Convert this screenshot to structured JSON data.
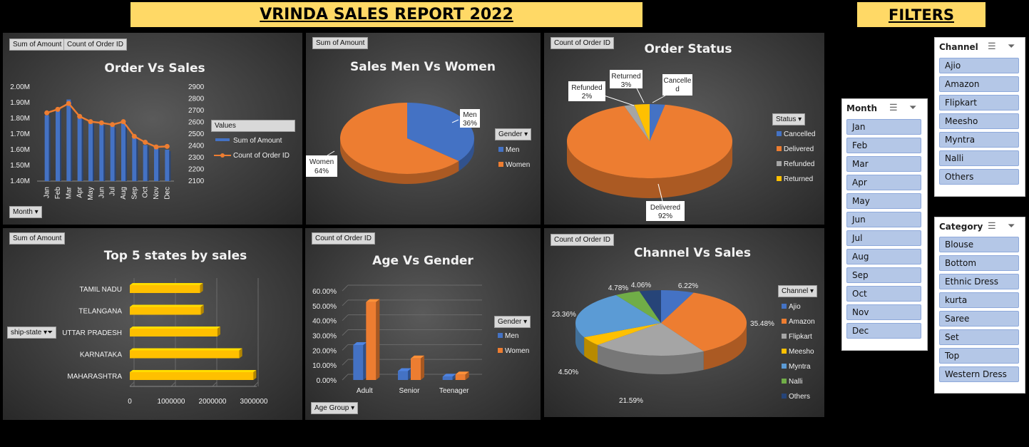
{
  "header": {
    "title": "VRINDA SALES REPORT 2022",
    "filters_title": "FILTERS"
  },
  "order_vs_sales": {
    "field_buttons": [
      "Sum of Amount",
      "Count of Order ID"
    ],
    "axis_button": "Month",
    "legend_header": "Values"
  },
  "sales_men_women": {
    "field_button": "Sum of Amount",
    "legend_header": "Gender"
  },
  "order_status": {
    "field_button": "Count of Order ID",
    "legend_header": "Status"
  },
  "top_states": {
    "field_button": "Sum of Amount",
    "axis_button": "ship-state"
  },
  "age_gender": {
    "field_button": "Count of Order ID",
    "axis_button": "Age Group",
    "legend_header": "Gender"
  },
  "channel_sales": {
    "field_button": "Count of Order ID",
    "legend_header": "Channel"
  },
  "slicers": {
    "month": {
      "title": "Month",
      "items": [
        "Jan",
        "Feb",
        "Mar",
        "Apr",
        "May",
        "Jun",
        "Jul",
        "Aug",
        "Sep",
        "Oct",
        "Nov",
        "Dec"
      ]
    },
    "channel": {
      "title": "Channel",
      "items": [
        "Ajio",
        "Amazon",
        "Flipkart",
        "Meesho",
        "Myntra",
        "Nalli",
        "Others"
      ]
    },
    "category": {
      "title": "Category",
      "items": [
        "Blouse",
        "Bottom",
        "Ethnic Dress",
        "kurta",
        "Saree",
        "Set",
        "Top",
        "Western Dress"
      ]
    }
  },
  "chart_data": [
    {
      "id": "order_vs_sales",
      "type": "bar",
      "title": "Order Vs Sales",
      "categories": [
        "Jan",
        "Feb",
        "Mar",
        "Apr",
        "May",
        "Jun",
        "Jul",
        "Aug",
        "Sep",
        "Oct",
        "Nov",
        "Dec"
      ],
      "series": [
        {
          "name": "Sum of Amount",
          "type": "bar",
          "axis": "left",
          "values": [
            1.82,
            1.86,
            1.92,
            1.81,
            1.77,
            1.76,
            1.75,
            1.78,
            1.68,
            1.63,
            1.61,
            1.6
          ]
        },
        {
          "name": "Count of Order ID",
          "type": "line",
          "axis": "right",
          "values": [
            2680,
            2710,
            2760,
            2650,
            2605,
            2595,
            2580,
            2605,
            2480,
            2430,
            2390,
            2395
          ]
        }
      ],
      "y_ticks_left": [
        "2.00M",
        "1.90M",
        "1.80M",
        "1.70M",
        "1.60M",
        "1.50M",
        "1.40M"
      ],
      "ylim_left": [
        1.4,
        2.0
      ],
      "y_ticks_right": [
        "2900",
        "2800",
        "2700",
        "2600",
        "2500",
        "2400",
        "2300",
        "2200",
        "2100"
      ],
      "ylim_right": [
        2100,
        2900
      ],
      "colors": {
        "bar": "#4472c4",
        "line": "#ed7d31"
      },
      "legend": "right"
    },
    {
      "id": "sales_men_women",
      "type": "pie",
      "title": "Sales Men Vs Women",
      "categories": [
        "Men",
        "Women"
      ],
      "values": [
        36,
        64
      ],
      "labels": [
        "36%",
        "64%"
      ],
      "colors": [
        "#4472c4",
        "#ed7d31"
      ],
      "legend": "right"
    },
    {
      "id": "order_status",
      "type": "pie",
      "title": "Order Status",
      "categories": [
        "Cancelled",
        "Delivered",
        "Refunded",
        "Returned"
      ],
      "values": [
        3,
        92,
        2,
        3
      ],
      "labels": [
        "Cancelle d",
        "Delivered 92%",
        "Refunded 2%",
        "Returned 3%"
      ],
      "colors": [
        "#4472c4",
        "#ed7d31",
        "#a5a5a5",
        "#ffc000"
      ],
      "legend": "right"
    },
    {
      "id": "top_states",
      "type": "bar",
      "orientation": "horizontal",
      "title": "Top 5 states by sales",
      "categories": [
        "TAMIL NADU",
        "TELANGANA",
        "UTTAR PRADESH",
        "KARNATAKA",
        "MAHARASHTRA"
      ],
      "values": [
        1700000,
        1720000,
        2120000,
        2650000,
        2990000
      ],
      "x_ticks": [
        "0",
        "1000000",
        "2000000",
        "3000000"
      ],
      "xlim": [
        0,
        3000000
      ],
      "colors": {
        "bar": "#ffc000"
      }
    },
    {
      "id": "age_gender",
      "type": "bar",
      "title": "Age Vs Gender",
      "categories": [
        "Adult",
        "Senior",
        "Teenager"
      ],
      "series": [
        {
          "name": "Men",
          "values": [
            23.5,
            6.0,
            2.3
          ]
        },
        {
          "name": "Women",
          "values": [
            52.5,
            14.5,
            3.7
          ]
        }
      ],
      "y_ticks": [
        "60.00%",
        "50.00%",
        "40.00%",
        "30.00%",
        "20.00%",
        "10.00%",
        "0.00%"
      ],
      "ylim": [
        0,
        60
      ],
      "colors": [
        "#4472c4",
        "#ed7d31"
      ],
      "legend": "right"
    },
    {
      "id": "channel_sales",
      "type": "pie",
      "title": "Channel Vs Sales",
      "categories": [
        "Ajio",
        "Amazon",
        "Flipkart",
        "Meesho",
        "Myntra",
        "Nalli",
        "Others"
      ],
      "values": [
        6.22,
        35.48,
        21.59,
        4.5,
        23.36,
        4.78,
        4.06
      ],
      "labels": [
        "6.22%",
        "35.48%",
        "21.59%",
        "4.50%",
        "23.36%",
        "4.78%",
        "4.06%"
      ],
      "colors": [
        "#4472c4",
        "#ed7d31",
        "#a5a5a5",
        "#ffc000",
        "#5b9bd5",
        "#70ad47",
        "#264478"
      ],
      "legend": "right"
    }
  ]
}
